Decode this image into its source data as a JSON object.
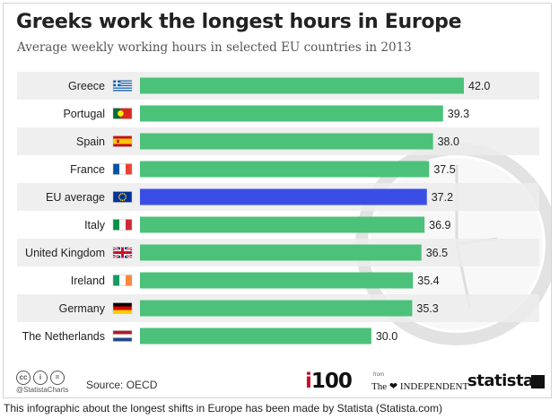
{
  "title": "Greeks work the longest hours in Europe",
  "subtitle": "Average weekly working hours in selected EU countries in 2013",
  "chart_data": {
    "type": "bar",
    "orientation": "horizontal",
    "categories": [
      "Greece",
      "Portugal",
      "Spain",
      "France",
      "EU average",
      "Italy",
      "United Kingdom",
      "Ireland",
      "Germany",
      "The Netherlands"
    ],
    "values": [
      42.0,
      39.3,
      38.0,
      37.5,
      37.2,
      36.9,
      36.5,
      35.4,
      35.3,
      30.0
    ],
    "value_labels": [
      "42.0",
      "39.3",
      "38.0",
      "37.5",
      "37.2",
      "36.9",
      "36.5",
      "35.4",
      "35.3",
      "30.0"
    ],
    "highlight": "EU average",
    "xlim": [
      0,
      42.0
    ],
    "grid": false,
    "legend": "none",
    "bar_color": "#4cc17a",
    "highlight_color": "#3a4ee6",
    "stripe_color": "#ececec",
    "flag_icons": [
      "greece-flag-icon",
      "portugal-flag-icon",
      "spain-flag-icon",
      "france-flag-icon",
      "eu-flag-icon",
      "italy-flag-icon",
      "united-kingdom-flag-icon",
      "ireland-flag-icon",
      "germany-flag-icon",
      "netherlands-flag-icon"
    ]
  },
  "footer": {
    "handle": "@StatistaCharts",
    "source": "Source: OECD",
    "i100_first": "i",
    "i100_rest": "100",
    "from": "from",
    "independent": "The ❤ INDEPENDENT",
    "statista": "statista",
    "cc_badges": [
      "cc",
      "i",
      "="
    ]
  },
  "caption": "This infographic about the longest shifts in Europe has been made by Statista (Statista.com)"
}
